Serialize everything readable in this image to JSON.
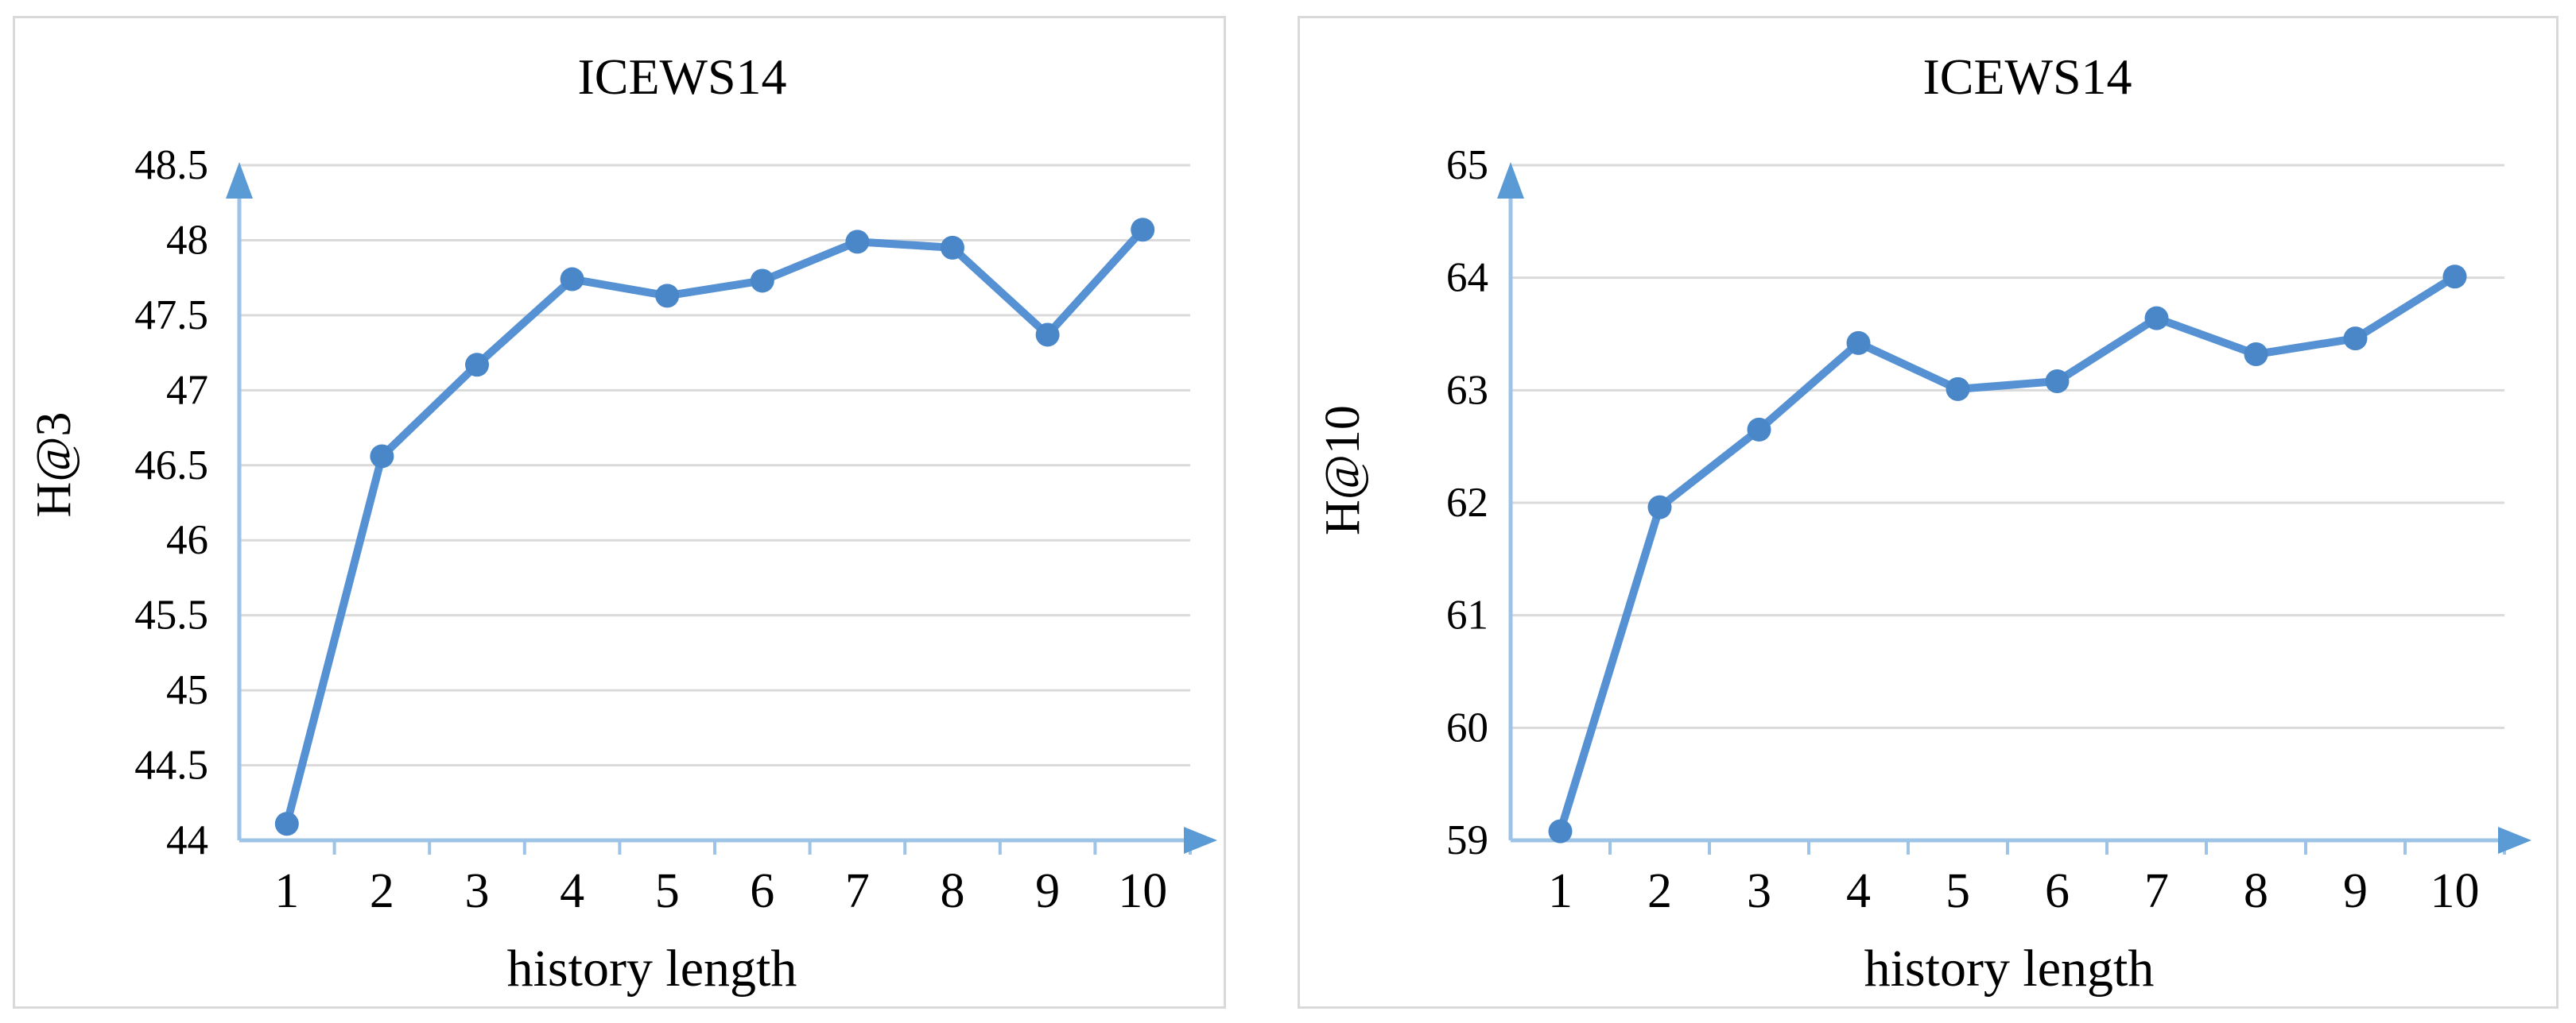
{
  "figure": {
    "description": "Two line charts showing sensitivity of performance to history length on the ICEWS14 dataset",
    "background": "#ffffff"
  },
  "colors": {
    "line": "#5591d3",
    "marker": "#4a87c9",
    "axis": "#9dc3e6",
    "arrow": "#5b9bd5",
    "grid": "#dadada",
    "panel_border": "#d9d9d9",
    "text": "#000000"
  },
  "chart_data": [
    {
      "type": "line",
      "title": "ICEWS14",
      "xlabel": "history length",
      "ylabel": "H@3",
      "categories": [
        "1",
        "2",
        "3",
        "4",
        "5",
        "6",
        "7",
        "8",
        "9",
        "10"
      ],
      "x": [
        1,
        2,
        3,
        4,
        5,
        6,
        7,
        8,
        9,
        10
      ],
      "values": [
        44.11,
        46.56,
        47.17,
        47.74,
        47.63,
        47.73,
        47.99,
        47.95,
        47.37,
        48.07
      ],
      "ylim": [
        44,
        48.5
      ],
      "ytick_step": 0.5,
      "yticks": [
        "44",
        "44.5",
        "45",
        "45.5",
        "46",
        "46.5",
        "47",
        "47.5",
        "48",
        "48.5"
      ],
      "grid": "horizontal",
      "legend": "none",
      "marker": "circle"
    },
    {
      "type": "line",
      "title": "ICEWS14",
      "xlabel": "history length",
      "ylabel": "H@10",
      "categories": [
        "1",
        "2",
        "3",
        "4",
        "5",
        "6",
        "7",
        "8",
        "9",
        "10"
      ],
      "x": [
        1,
        2,
        3,
        4,
        5,
        6,
        7,
        8,
        9,
        10
      ],
      "values": [
        59.08,
        61.96,
        62.65,
        63.42,
        63.01,
        63.08,
        63.64,
        63.32,
        63.46,
        64.01
      ],
      "ylim": [
        59,
        65
      ],
      "ytick_step": 1,
      "yticks": [
        "59",
        "60",
        "61",
        "62",
        "63",
        "64",
        "65"
      ],
      "grid": "horizontal",
      "legend": "none",
      "marker": "circle"
    }
  ]
}
